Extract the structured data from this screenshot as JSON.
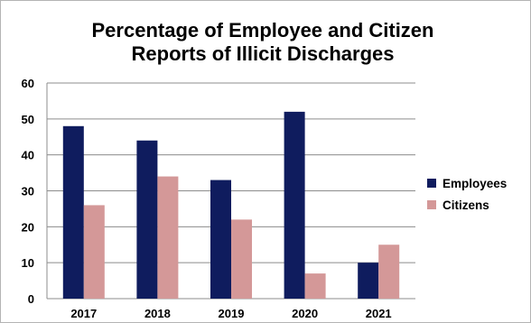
{
  "chart_data": {
    "type": "bar",
    "title_line1": "Percentage of Employee and Citizen",
    "title_line2": "Reports of Illicit Discharges",
    "categories": [
      "2017",
      "2018",
      "2019",
      "2020",
      "2021"
    ],
    "series": [
      {
        "name": "Employees",
        "values": [
          48,
          44,
          33,
          52,
          10
        ],
        "color": "#0f1c5e"
      },
      {
        "name": "Citizens",
        "values": [
          26,
          34,
          22,
          7,
          15
        ],
        "color": "#d49898"
      }
    ],
    "ylim": [
      0,
      60
    ],
    "yticks": [
      0,
      10,
      20,
      30,
      40,
      50,
      60
    ],
    "grid": true,
    "legend_position": "right"
  }
}
